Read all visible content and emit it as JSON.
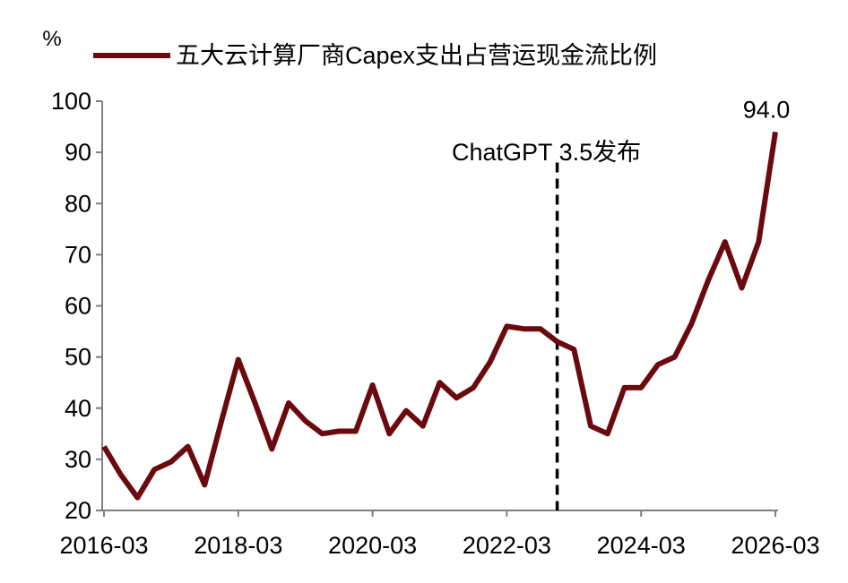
{
  "chart_data": {
    "type": "line",
    "title": "",
    "ylabel": "%",
    "xlabel": "",
    "ylim": [
      20,
      100
    ],
    "yticks": [
      20,
      30,
      40,
      50,
      60,
      70,
      80,
      90,
      100
    ],
    "xticks": [
      "2016-03",
      "2018-03",
      "2020-03",
      "2022-03",
      "2024-03",
      "2026-03"
    ],
    "legend_position": "top",
    "grid": false,
    "series": [
      {
        "name": "五大云计算厂商Capex支出占营运现金流比例",
        "color": "#6b0a0e",
        "x": [
          "2016-03",
          "2016-06",
          "2016-09",
          "2016-12",
          "2017-03",
          "2017-06",
          "2017-09",
          "2017-12",
          "2018-03",
          "2018-06",
          "2018-09",
          "2018-12",
          "2019-03",
          "2019-06",
          "2019-09",
          "2019-12",
          "2020-03",
          "2020-06",
          "2020-09",
          "2020-12",
          "2021-03",
          "2021-06",
          "2021-09",
          "2021-12",
          "2022-03",
          "2022-06",
          "2022-09",
          "2022-12",
          "2023-03",
          "2023-06",
          "2023-09",
          "2023-12",
          "2024-03",
          "2024-06",
          "2024-09",
          "2024-12",
          "2025-03",
          "2025-06",
          "2025-09",
          "2025-12",
          "2026-03"
        ],
        "values": [
          32.5,
          27.0,
          22.5,
          28.0,
          29.5,
          32.5,
          25.0,
          37.5,
          49.5,
          41.0,
          32.0,
          41.0,
          37.5,
          35.0,
          35.5,
          35.5,
          44.5,
          35.0,
          39.5,
          36.5,
          45.0,
          42.0,
          44.0,
          49.0,
          56.0,
          55.5,
          55.5,
          53.0,
          51.5,
          36.5,
          35.0,
          44.0,
          44.0,
          48.5,
          50.0,
          56.5,
          65.0,
          72.5,
          63.5,
          72.5,
          94.0
        ]
      }
    ],
    "annotations": [
      {
        "id": "chatgpt",
        "text": "ChatGPT 3.5发布",
        "x": "2022-12",
        "style": "dashed-vertical-line"
      },
      {
        "id": "last",
        "text": "94.0",
        "x": "2026-03",
        "y": 94.0
      }
    ]
  }
}
